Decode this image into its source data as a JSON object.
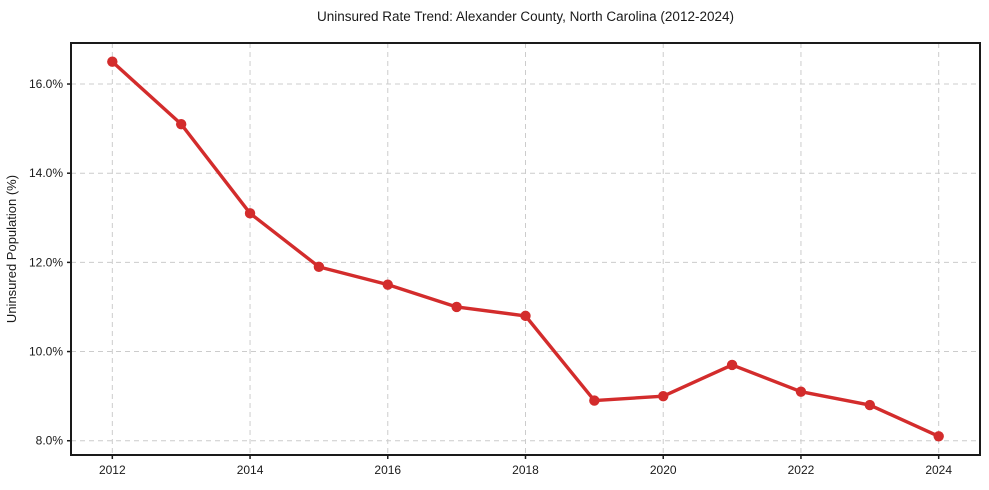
{
  "chart_data": {
    "type": "line",
    "title": "Uninsured Rate Trend: Alexander County, North Carolina (2012-2024)",
    "xlabel": "",
    "ylabel": "Uninsured Population (%)",
    "x": [
      2012,
      2013,
      2014,
      2015,
      2016,
      2017,
      2018,
      2019,
      2020,
      2021,
      2022,
      2023,
      2024
    ],
    "values": [
      16.5,
      15.1,
      13.1,
      11.9,
      11.5,
      11.0,
      10.8,
      8.9,
      9.0,
      9.7,
      9.1,
      8.8,
      8.1
    ],
    "xlim": [
      2011.4,
      2024.6
    ],
    "ylim": [
      7.68,
      16.92
    ],
    "x_ticks": [
      2012,
      2014,
      2016,
      2018,
      2020,
      2022,
      2024
    ],
    "x_tick_labels": [
      "2012",
      "2014",
      "2016",
      "2018",
      "2020",
      "2022",
      "2024"
    ],
    "y_ticks": [
      8,
      10,
      12,
      14,
      16
    ],
    "y_tick_labels": [
      "8.0%",
      "10.0%",
      "12.0%",
      "14.0%",
      "16.0%"
    ],
    "grid": "dashed",
    "legend": "none",
    "marker": "circle",
    "colors": {
      "line": "#d32c2c",
      "grid": "#cccccc",
      "spine": "#1a1a1a",
      "text": "#1a1a1a",
      "background": "#ffffff"
    }
  }
}
